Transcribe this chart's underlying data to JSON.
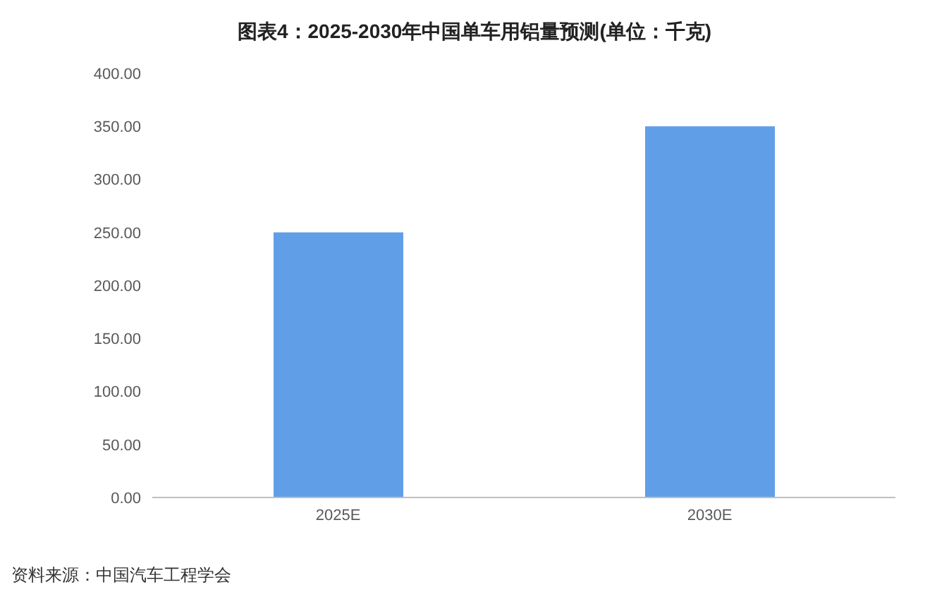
{
  "chart_data": {
    "type": "bar",
    "title": "图表4：2025-2030年中国单车用铝量预测(单位：千克)",
    "categories": [
      "2025E",
      "2030E"
    ],
    "values": [
      250,
      350
    ],
    "color": "#619ee8",
    "ylim": [
      0,
      400
    ],
    "yticks": [
      {
        "value": 0,
        "label": "0.00"
      },
      {
        "value": 50,
        "label": "50.00"
      },
      {
        "value": 100,
        "label": "100.00"
      },
      {
        "value": 150,
        "label": "150.00"
      },
      {
        "value": 200,
        "label": "200.00"
      },
      {
        "value": 250,
        "label": "250.00"
      },
      {
        "value": 300,
        "label": "300.00"
      },
      {
        "value": 350,
        "label": "350.00"
      },
      {
        "value": 400,
        "label": "400.00"
      }
    ],
    "grid": false,
    "annotations": [
      "资料来源：中国汽车工程学会"
    ]
  }
}
